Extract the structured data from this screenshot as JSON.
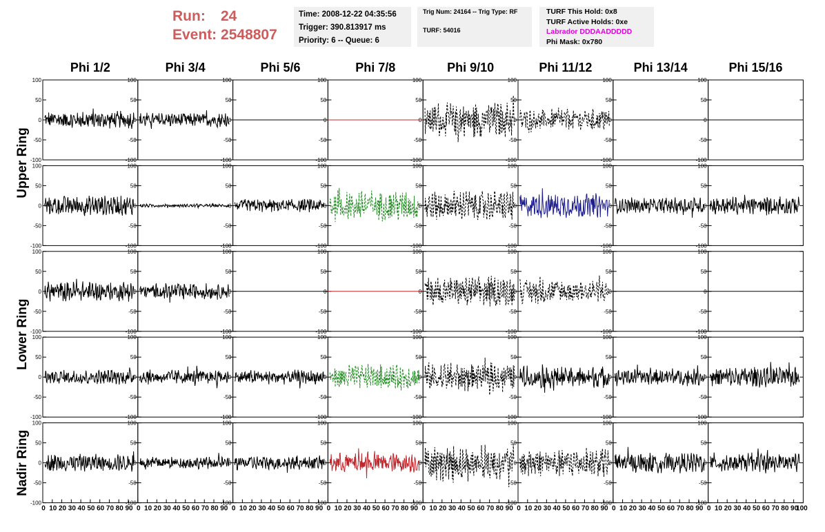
{
  "header": {
    "run_label": "Run:",
    "run_value": "24",
    "event_label": "Event:",
    "event_value": "2548807",
    "time": "Time: 2008-12-22 04:35:56",
    "trigger": "Trigger: 390.813917 ms",
    "priority": "Priority: 6 -- Queue: 6",
    "trig_num": "Trig Num: 24164 -- Trig Type: RF",
    "turf": "TURF: 54016",
    "turf_this_hold": "TURF This Hold: 0x8",
    "turf_active_holds": "TURF Active Holds: 0xe",
    "labrador": "Labrador DDDAADDDDD",
    "phi_mask": "Phi Mask: 0x780",
    "colors": {
      "run": "#cd5c5c",
      "labrador": "#e100e1"
    }
  },
  "chart_data": {
    "type": "line",
    "columns": [
      "Phi 1/2",
      "Phi 3/4",
      "Phi 5/6",
      "Phi 7/8",
      "Phi 9/10",
      "Phi 11/12",
      "Phi 13/14",
      "Phi 15/16"
    ],
    "rings": [
      {
        "label": "Upper Ring",
        "rows": [
          0,
          1
        ]
      },
      {
        "label": "Lower Ring",
        "rows": [
          2,
          3
        ]
      },
      {
        "label": "Nadir Ring",
        "rows": [
          4
        ]
      }
    ],
    "ylim": [
      -100,
      100
    ],
    "xlim": [
      0,
      100
    ],
    "yticks": [
      -100,
      -50,
      0,
      50,
      100
    ],
    "ytick_labels": [
      "-100",
      "-50",
      "0",
      "50",
      "100"
    ],
    "xticks": [
      0,
      10,
      20,
      30,
      40,
      50,
      60,
      70,
      80,
      90
    ],
    "xtick_labels": [
      "0",
      "10",
      "20",
      "30",
      "40",
      "50",
      "60",
      "70",
      "80",
      "90"
    ],
    "last_xtick_label": "100",
    "grid": false,
    "colors": {
      "black": "#000000",
      "red": "#c0272d",
      "green": "#1f8a1f",
      "blue": "#1c1c8c"
    },
    "panels": [
      [
        {
          "style": "solid",
          "color": "black",
          "amplitude": 22,
          "flat": false
        },
        {
          "style": "solid",
          "color": "black",
          "amplitude": 18,
          "flat": false
        },
        {
          "style": "solid",
          "color": "black",
          "amplitude": 0,
          "flat": true
        },
        {
          "style": "solid",
          "color": "red",
          "amplitude": 0,
          "flat": true
        },
        {
          "style": "dashed",
          "color": "black",
          "amplitude": 45,
          "flat": false
        },
        {
          "style": "dashed",
          "color": "black",
          "amplitude": 28,
          "flat": false
        },
        {
          "style": "solid",
          "color": "black",
          "amplitude": 0,
          "flat": true
        },
        {
          "style": "solid",
          "color": "black",
          "amplitude": 0,
          "flat": true
        }
      ],
      [
        {
          "style": "solid",
          "color": "black",
          "amplitude": 25,
          "flat": false
        },
        {
          "style": "solid",
          "color": "black",
          "amplitude": 4,
          "flat": false
        },
        {
          "style": "solid",
          "color": "black",
          "amplitude": 16,
          "flat": false
        },
        {
          "style": "dashed",
          "color": "green",
          "amplitude": 40,
          "flat": false
        },
        {
          "style": "dashed",
          "color": "black",
          "amplitude": 38,
          "flat": false
        },
        {
          "style": "solid",
          "color": "blue",
          "amplitude": 30,
          "flat": false
        },
        {
          "style": "solid",
          "color": "black",
          "amplitude": 20,
          "flat": false
        },
        {
          "style": "solid",
          "color": "black",
          "amplitude": 22,
          "flat": false
        }
      ],
      [
        {
          "style": "solid",
          "color": "black",
          "amplitude": 25,
          "flat": false
        },
        {
          "style": "solid",
          "color": "black",
          "amplitude": 20,
          "flat": false
        },
        {
          "style": "solid",
          "color": "black",
          "amplitude": 0,
          "flat": true
        },
        {
          "style": "solid",
          "color": "red",
          "amplitude": 0,
          "flat": true
        },
        {
          "style": "dashed",
          "color": "black",
          "amplitude": 38,
          "flat": false
        },
        {
          "style": "dashed",
          "color": "black",
          "amplitude": 30,
          "flat": false
        },
        {
          "style": "solid",
          "color": "black",
          "amplitude": 0,
          "flat": true
        },
        {
          "style": "solid",
          "color": "black",
          "amplitude": 0,
          "flat": true
        }
      ],
      [
        {
          "style": "solid",
          "color": "black",
          "amplitude": 18,
          "flat": false
        },
        {
          "style": "solid",
          "color": "black",
          "amplitude": 18,
          "flat": false
        },
        {
          "style": "solid",
          "color": "black",
          "amplitude": 18,
          "flat": false
        },
        {
          "style": "dashed",
          "color": "green",
          "amplitude": 32,
          "flat": false
        },
        {
          "style": "dashed",
          "color": "black",
          "amplitude": 36,
          "flat": false
        },
        {
          "style": "solid",
          "color": "black",
          "amplitude": 28,
          "flat": false
        },
        {
          "style": "solid",
          "color": "black",
          "amplitude": 20,
          "flat": false
        },
        {
          "style": "solid",
          "color": "black",
          "amplitude": 25,
          "flat": false
        }
      ],
      [
        {
          "style": "solid",
          "color": "black",
          "amplitude": 22,
          "flat": false
        },
        {
          "style": "solid",
          "color": "black",
          "amplitude": 15,
          "flat": false
        },
        {
          "style": "solid",
          "color": "black",
          "amplitude": 18,
          "flat": false
        },
        {
          "style": "solid",
          "color": "red",
          "amplitude": 25,
          "flat": false
        },
        {
          "style": "dashed",
          "color": "black",
          "amplitude": 45,
          "flat": false
        },
        {
          "style": "dashed",
          "color": "black",
          "amplitude": 38,
          "flat": false
        },
        {
          "style": "solid",
          "color": "black",
          "amplitude": 25,
          "flat": false
        },
        {
          "style": "solid",
          "color": "black",
          "amplitude": 25,
          "flat": false
        }
      ]
    ]
  }
}
